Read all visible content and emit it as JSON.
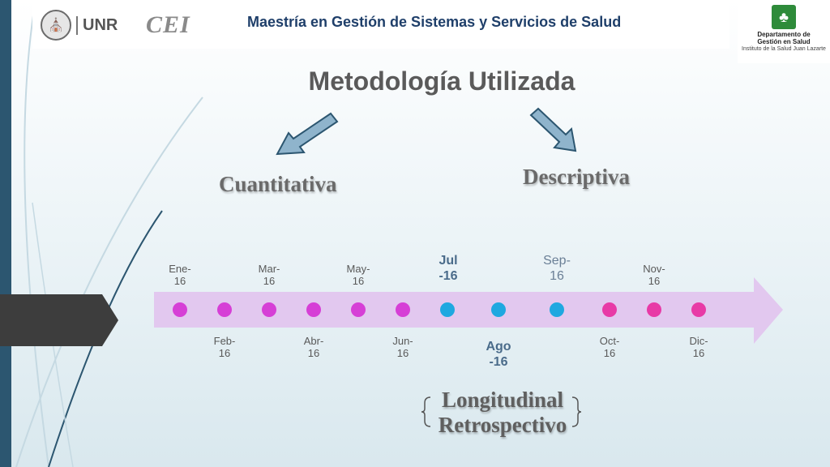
{
  "header": {
    "title": "Maestría en Gestión de Sistemas y Servicios de Salud",
    "unr_logo_text": "UNR",
    "cei_logo_text": "CEI",
    "dept_logo": {
      "line1": "Departamento de",
      "line2": "Gestión en Salud",
      "line3": "Instituto de la Salud Juan Lazarte"
    }
  },
  "slide": {
    "title": "Metodología Utilizada",
    "left_term": "Cuantitativa",
    "right_term": "Descriptiva",
    "bottom_line1": "Longitudinal",
    "bottom_line2": "Retrospectivo"
  },
  "timeline": {
    "top_labels": [
      {
        "line1": "Ene-",
        "line2": "16"
      },
      {
        "line1": "Mar-",
        "line2": "16"
      },
      {
        "line1": "May-",
        "line2": "16"
      },
      {
        "line1": "Jul",
        "line2": "-16"
      },
      {
        "line1": "Sep-",
        "line2": "16"
      },
      {
        "line1": "Nov-",
        "line2": "16"
      }
    ],
    "bottom_labels": [
      {
        "line1": "Feb-",
        "line2": "16"
      },
      {
        "line1": "Abr-",
        "line2": "16"
      },
      {
        "line1": "Jun-",
        "line2": "16"
      },
      {
        "line1": "Ago",
        "line2": "-16"
      },
      {
        "line1": "Oct-",
        "line2": "16"
      },
      {
        "line1": "Dic-",
        "line2": "16"
      }
    ],
    "colors": {
      "band": "#e2c8ef",
      "dot_magenta": "#d63fd6",
      "dot_pink": "#e83aa6",
      "dot_cyan": "#1fa8e0"
    }
  }
}
